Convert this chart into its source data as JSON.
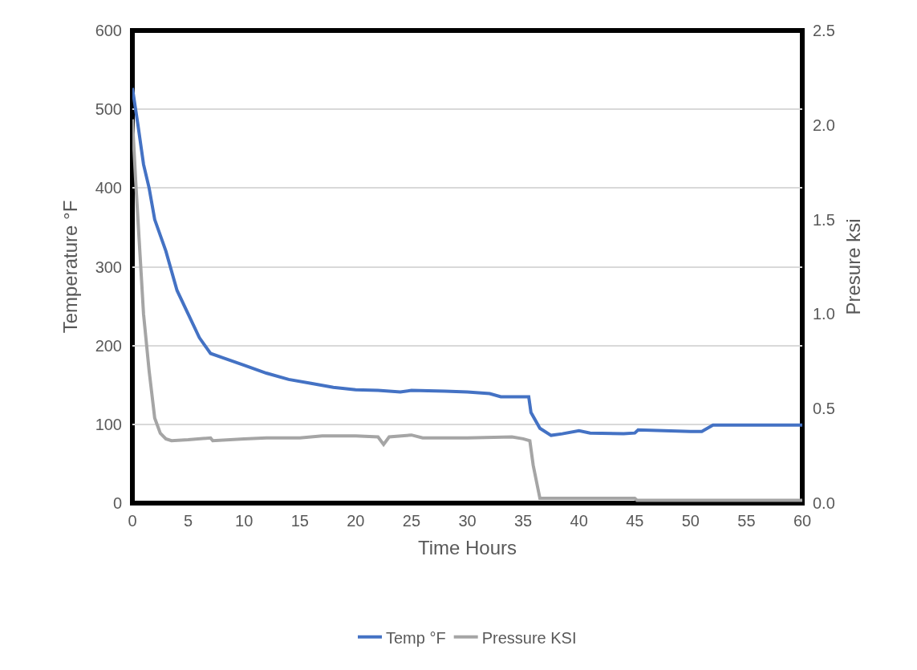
{
  "chart_data": {
    "type": "line",
    "xlabel": "Time Hours",
    "ylabel": "Temperature °F",
    "y2label": "Presure ksi",
    "xlim": [
      0,
      60
    ],
    "xticks": [
      0,
      5,
      10,
      15,
      20,
      25,
      30,
      35,
      40,
      45,
      50,
      55,
      60
    ],
    "ylim": [
      0,
      600
    ],
    "yticks": [
      0,
      100,
      200,
      300,
      400,
      500,
      600
    ],
    "y2lim": [
      0,
      2.5
    ],
    "y2ticks": [
      {
        "value": 0,
        "label": "0.0"
      },
      {
        "value": 0.5,
        "label": "0.5"
      },
      {
        "value": 1,
        "label": "1.0"
      },
      {
        "value": 1.5,
        "label": "1.5"
      },
      {
        "value": 2,
        "label": "2.0"
      },
      {
        "value": 2.5,
        "label": "2.5"
      }
    ],
    "grid": "y",
    "legend": "bottom",
    "marker": "none",
    "line_style": "solid",
    "series": [
      {
        "name": "Temp °F",
        "color": "#4472c4",
        "x": [
          0,
          0.5,
          1,
          1.5,
          2,
          3,
          4,
          5,
          6,
          7,
          8,
          10,
          12,
          14,
          16,
          18,
          20,
          22,
          24,
          25,
          28,
          30,
          32,
          33,
          35.5,
          35.7,
          36.5,
          37.5,
          38.5,
          40,
          41,
          44,
          45,
          45.3,
          50,
          51,
          52,
          53,
          60
        ],
        "values": [
          527,
          480,
          430,
          400,
          360,
          320,
          270,
          240,
          210,
          190,
          185,
          175,
          165,
          157,
          152,
          147,
          144,
          143,
          141,
          143,
          142,
          141,
          139,
          135,
          135,
          115,
          95,
          86,
          88,
          92,
          89,
          88,
          89,
          93,
          91,
          91,
          99,
          99,
          99
        ]
      },
      {
        "name": "Pressure KSI",
        "color": "#a5a5a5",
        "axis": "y2",
        "x": [
          0,
          0.3,
          0.7,
          1,
          1.5,
          2,
          2.5,
          3,
          3.5,
          5,
          7,
          7.2,
          10,
          12,
          15,
          17,
          20,
          22,
          22.5,
          23,
          25,
          26,
          30,
          34,
          35,
          35.6,
          35.9,
          36.5,
          45,
          45.2,
          60
        ],
        "values": [
          2.03,
          1.7,
          1.3,
          1.0,
          0.7,
          0.45,
          0.37,
          0.34,
          0.33,
          0.335,
          0.345,
          0.33,
          0.34,
          0.345,
          0.345,
          0.355,
          0.355,
          0.35,
          0.31,
          0.35,
          0.36,
          0.345,
          0.345,
          0.35,
          0.34,
          0.33,
          0.2,
          0.025,
          0.025,
          0.015,
          0.015
        ]
      }
    ]
  }
}
